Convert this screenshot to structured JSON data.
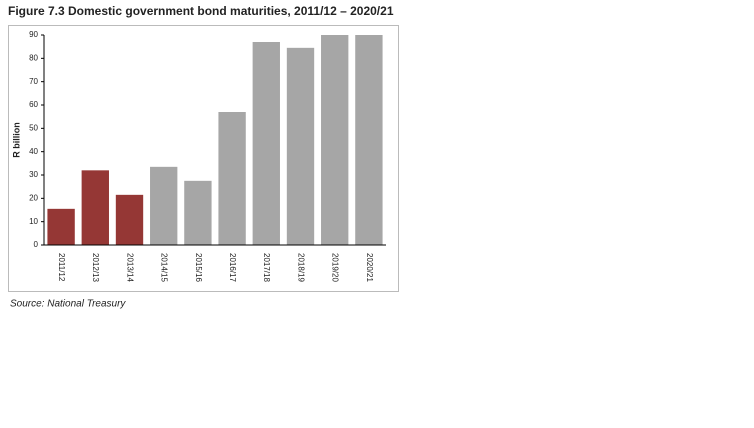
{
  "chart_data": {
    "type": "bar",
    "title": "Figure 7.3 Domestic government bond maturities, 2011/12 – 2020/21",
    "y_label": "R billion",
    "source": "Source: National Treasury",
    "categories": [
      "2011/12",
      "2012/13",
      "2013/14",
      "2014/15",
      "2015/16",
      "2016/17",
      "2017/18",
      "2018/19",
      "2019/20",
      "2020/21"
    ],
    "values": [
      15.5,
      32,
      21.5,
      33.5,
      27.5,
      57,
      87,
      84.5,
      90,
      90
    ],
    "colors": [
      "#953735",
      "#953735",
      "#953735",
      "#a6a6a6",
      "#a6a6a6",
      "#a6a6a6",
      "#a6a6a6",
      "#a6a6a6",
      "#a6a6a6",
      "#a6a6a6"
    ],
    "ylim": [
      0,
      90
    ],
    "yticks": [
      0,
      10,
      20,
      30,
      40,
      50,
      60,
      70,
      80,
      90
    ],
    "grid": false
  }
}
